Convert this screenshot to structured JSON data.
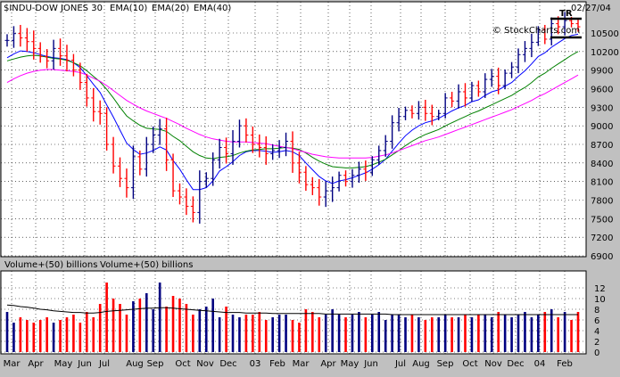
{
  "chart_data": [
    {
      "type": "bar",
      "subtype": "ohlc",
      "title": "$INDU-DOW JONES 30",
      "date": "02/27/04",
      "legend": [
        {
          "name": "EMA(10)",
          "color": "#0000ff"
        },
        {
          "name": "EMA(20)",
          "color": "#008000"
        },
        {
          "name": "EMA(40)",
          "color": "#ff00ff"
        }
      ],
      "annotation": {
        "text": "TR",
        "color": "#ff0000"
      },
      "watermark": "© StockCharts.com",
      "ylim": [
        6900,
        10800
      ],
      "yticks": [
        "10500",
        "10200",
        "9900",
        "9600",
        "9300",
        "9000",
        "8700",
        "8400",
        "8100",
        "7800",
        "7500",
        "7200",
        "6900"
      ],
      "xticks": [
        "Mar",
        "Apr",
        "May",
        "Jun",
        "Jul",
        "Aug",
        "Sep",
        "Oct",
        "Nov",
        "Dec",
        "03",
        "Feb",
        "Mar",
        "Apr",
        "May",
        "Jun",
        "Jul",
        "Aug",
        "Sep",
        "Oct",
        "Nov",
        "Dec",
        "04",
        "Feb"
      ],
      "grid": true,
      "series": [
        {
          "name": "Price",
          "values": [
            10380,
            10490,
            10420,
            10360,
            10250,
            10120,
            10050,
            10250,
            10130,
            10060,
            9900,
            9700,
            9450,
            9230,
            9200,
            8700,
            8350,
            8150,
            8000,
            8500,
            8300,
            8700,
            8850,
            8950,
            8450,
            7950,
            7850,
            7700,
            7600,
            8100,
            8150,
            8450,
            8650,
            8550,
            8750,
            9000,
            8850,
            8700,
            8650,
            8550,
            8600,
            8650,
            8750,
            8400,
            8250,
            8050,
            8000,
            7850,
            7950,
            8000,
            8200,
            8100,
            8200,
            8300,
            8250,
            8450,
            8600,
            8750,
            9050,
            9150,
            9250,
            9200,
            9300,
            9200,
            9150,
            9200,
            9450,
            9400,
            9550,
            9450,
            9650,
            9550,
            9750,
            9800,
            9650,
            9850,
            9950,
            10150,
            10250,
            10350,
            10550,
            10400,
            10650,
            10600,
            10700,
            10650,
            10600
          ]
        },
        {
          "name": "EMA(10)",
          "values": [
            10100,
            10160,
            10210,
            10200,
            10180,
            10150,
            10120,
            10100,
            10090,
            10070,
            10020,
            9940,
            9810,
            9670,
            9540,
            9340,
            9140,
            8930,
            8720,
            8620,
            8540,
            8560,
            8600,
            8660,
            8610,
            8440,
            8300,
            8130,
            7970,
            7970,
            8000,
            8110,
            8270,
            8340,
            8420,
            8520,
            8580,
            8600,
            8600,
            8590,
            8570,
            8580,
            8600,
            8580,
            8520,
            8400,
            8290,
            8180,
            8110,
            8070,
            8110,
            8130,
            8160,
            8200,
            8240,
            8300,
            8370,
            8460,
            8590,
            8720,
            8840,
            8930,
            9000,
            9050,
            9080,
            9120,
            9180,
            9240,
            9290,
            9330,
            9390,
            9420,
            9490,
            9550,
            9580,
            9640,
            9700,
            9800,
            9890,
            10000,
            10120,
            10180,
            10270,
            10340,
            10410,
            10460,
            10480
          ]
        },
        {
          "name": "EMA(20)",
          "values": [
            10050,
            10080,
            10110,
            10130,
            10140,
            10130,
            10110,
            10090,
            10080,
            10060,
            10020,
            9970,
            9890,
            9800,
            9710,
            9590,
            9450,
            9300,
            9160,
            9080,
            9010,
            8960,
            8950,
            8940,
            8910,
            8830,
            8760,
            8670,
            8580,
            8520,
            8480,
            8470,
            8490,
            8500,
            8520,
            8560,
            8590,
            8610,
            8620,
            8630,
            8630,
            8640,
            8650,
            8640,
            8620,
            8560,
            8490,
            8430,
            8380,
            8340,
            8330,
            8320,
            8320,
            8330,
            8340,
            8370,
            8410,
            8460,
            8530,
            8600,
            8680,
            8750,
            8810,
            8860,
            8900,
            8940,
            9000,
            9050,
            9100,
            9150,
            9200,
            9240,
            9290,
            9340,
            9390,
            9440,
            9490,
            9560,
            9620,
            9700,
            9790,
            9850,
            9930,
            10000,
            10070,
            10140,
            10200
          ]
        },
        {
          "name": "EMA(40)",
          "values": [
            9700,
            9760,
            9810,
            9850,
            9880,
            9900,
            9910,
            9910,
            9900,
            9890,
            9880,
            9860,
            9820,
            9770,
            9720,
            9650,
            9570,
            9490,
            9410,
            9350,
            9290,
            9240,
            9200,
            9160,
            9120,
            9070,
            9020,
            8960,
            8910,
            8860,
            8820,
            8790,
            8770,
            8750,
            8740,
            8740,
            8740,
            8730,
            8720,
            8710,
            8690,
            8670,
            8650,
            8630,
            8600,
            8570,
            8540,
            8520,
            8500,
            8490,
            8480,
            8480,
            8480,
            8480,
            8480,
            8490,
            8510,
            8530,
            8560,
            8600,
            8640,
            8680,
            8720,
            8760,
            8790,
            8820,
            8860,
            8900,
            8940,
            8980,
            9020,
            9060,
            9100,
            9140,
            9180,
            9220,
            9260,
            9310,
            9360,
            9410,
            9470,
            9520,
            9580,
            9640,
            9700,
            9760,
            9820
          ]
        }
      ]
    },
    {
      "type": "bar",
      "title": "Volume+(50) billions",
      "legend": [
        {
          "name": "Volume+(50) billions",
          "color": "#000000"
        }
      ],
      "ylim": [
        0,
        13
      ],
      "yticks": [
        "12",
        "10",
        "8",
        "6",
        "4",
        "2",
        "0"
      ],
      "xticks": [
        "Mar",
        "Apr",
        "May",
        "Jun",
        "Jul",
        "Aug",
        "Sep",
        "Oct",
        "Nov",
        "Dec",
        "03",
        "Feb",
        "Mar",
        "Apr",
        "May",
        "Jun",
        "Jul",
        "Aug",
        "Sep",
        "Oct",
        "Nov",
        "Dec",
        "04",
        "Feb"
      ],
      "grid": true,
      "series": [
        {
          "name": "Volume",
          "values": [
            7.5,
            5.5,
            6.5,
            6.0,
            5.5,
            6.0,
            6.5,
            5.5,
            6.0,
            6.5,
            7.0,
            5.5,
            7.5,
            6.5,
            9.0,
            13.0,
            10.0,
            9.0,
            7.0,
            9.5,
            10.0,
            11.0,
            8.0,
            13.0,
            8.5,
            10.5,
            10.0,
            9.0,
            7.0,
            8.0,
            8.5,
            10.0,
            6.5,
            8.5,
            7.0,
            6.5,
            7.0,
            7.0,
            7.5,
            6.0,
            6.5,
            7.0,
            7.0,
            6.0,
            5.5,
            8.0,
            7.5,
            6.5,
            7.0,
            8.0,
            7.0,
            6.5,
            7.0,
            7.5,
            6.5,
            7.0,
            7.5,
            6.0,
            7.0,
            7.0,
            6.5,
            7.0,
            6.5,
            6.0,
            6.5,
            6.5,
            7.0,
            6.5,
            6.5,
            7.0,
            6.5,
            7.0,
            7.0,
            6.5,
            7.5,
            7.0,
            6.5,
            7.0,
            7.5,
            6.5,
            7.0,
            7.5,
            8.0,
            6.5,
            7.5,
            6.0,
            7.5
          ]
        },
        {
          "name": "Volume MA(50)",
          "values": [
            8.8,
            8.7,
            8.5,
            8.4,
            8.2,
            8.0,
            7.9,
            7.7,
            7.6,
            7.5,
            7.4,
            7.4,
            7.3,
            7.3,
            7.4,
            7.6,
            7.7,
            7.8,
            7.9,
            8.0,
            8.1,
            8.2,
            8.2,
            8.3,
            8.3,
            8.2,
            8.1,
            8.0,
            7.9,
            7.8,
            7.7,
            7.6,
            7.5,
            7.4,
            7.4,
            7.4,
            7.3,
            7.3,
            7.3,
            7.3,
            7.2,
            7.2,
            7.2,
            7.2,
            7.2,
            7.2,
            7.2,
            7.2,
            7.1,
            7.1,
            7.1,
            7.1,
            7.1,
            7.1,
            7.1,
            7.1,
            7.1,
            7.1,
            7.0,
            7.0,
            7.0,
            7.0,
            7.0,
            7.0,
            7.0,
            7.0,
            7.0,
            7.0,
            7.0,
            7.0,
            7.0,
            7.0,
            7.0,
            7.0,
            7.0,
            7.0,
            7.0,
            7.0,
            7.0,
            7.0,
            7.0,
            7.0,
            7.0,
            7.0,
            7.0,
            7.0,
            7.0
          ]
        }
      ]
    }
  ]
}
